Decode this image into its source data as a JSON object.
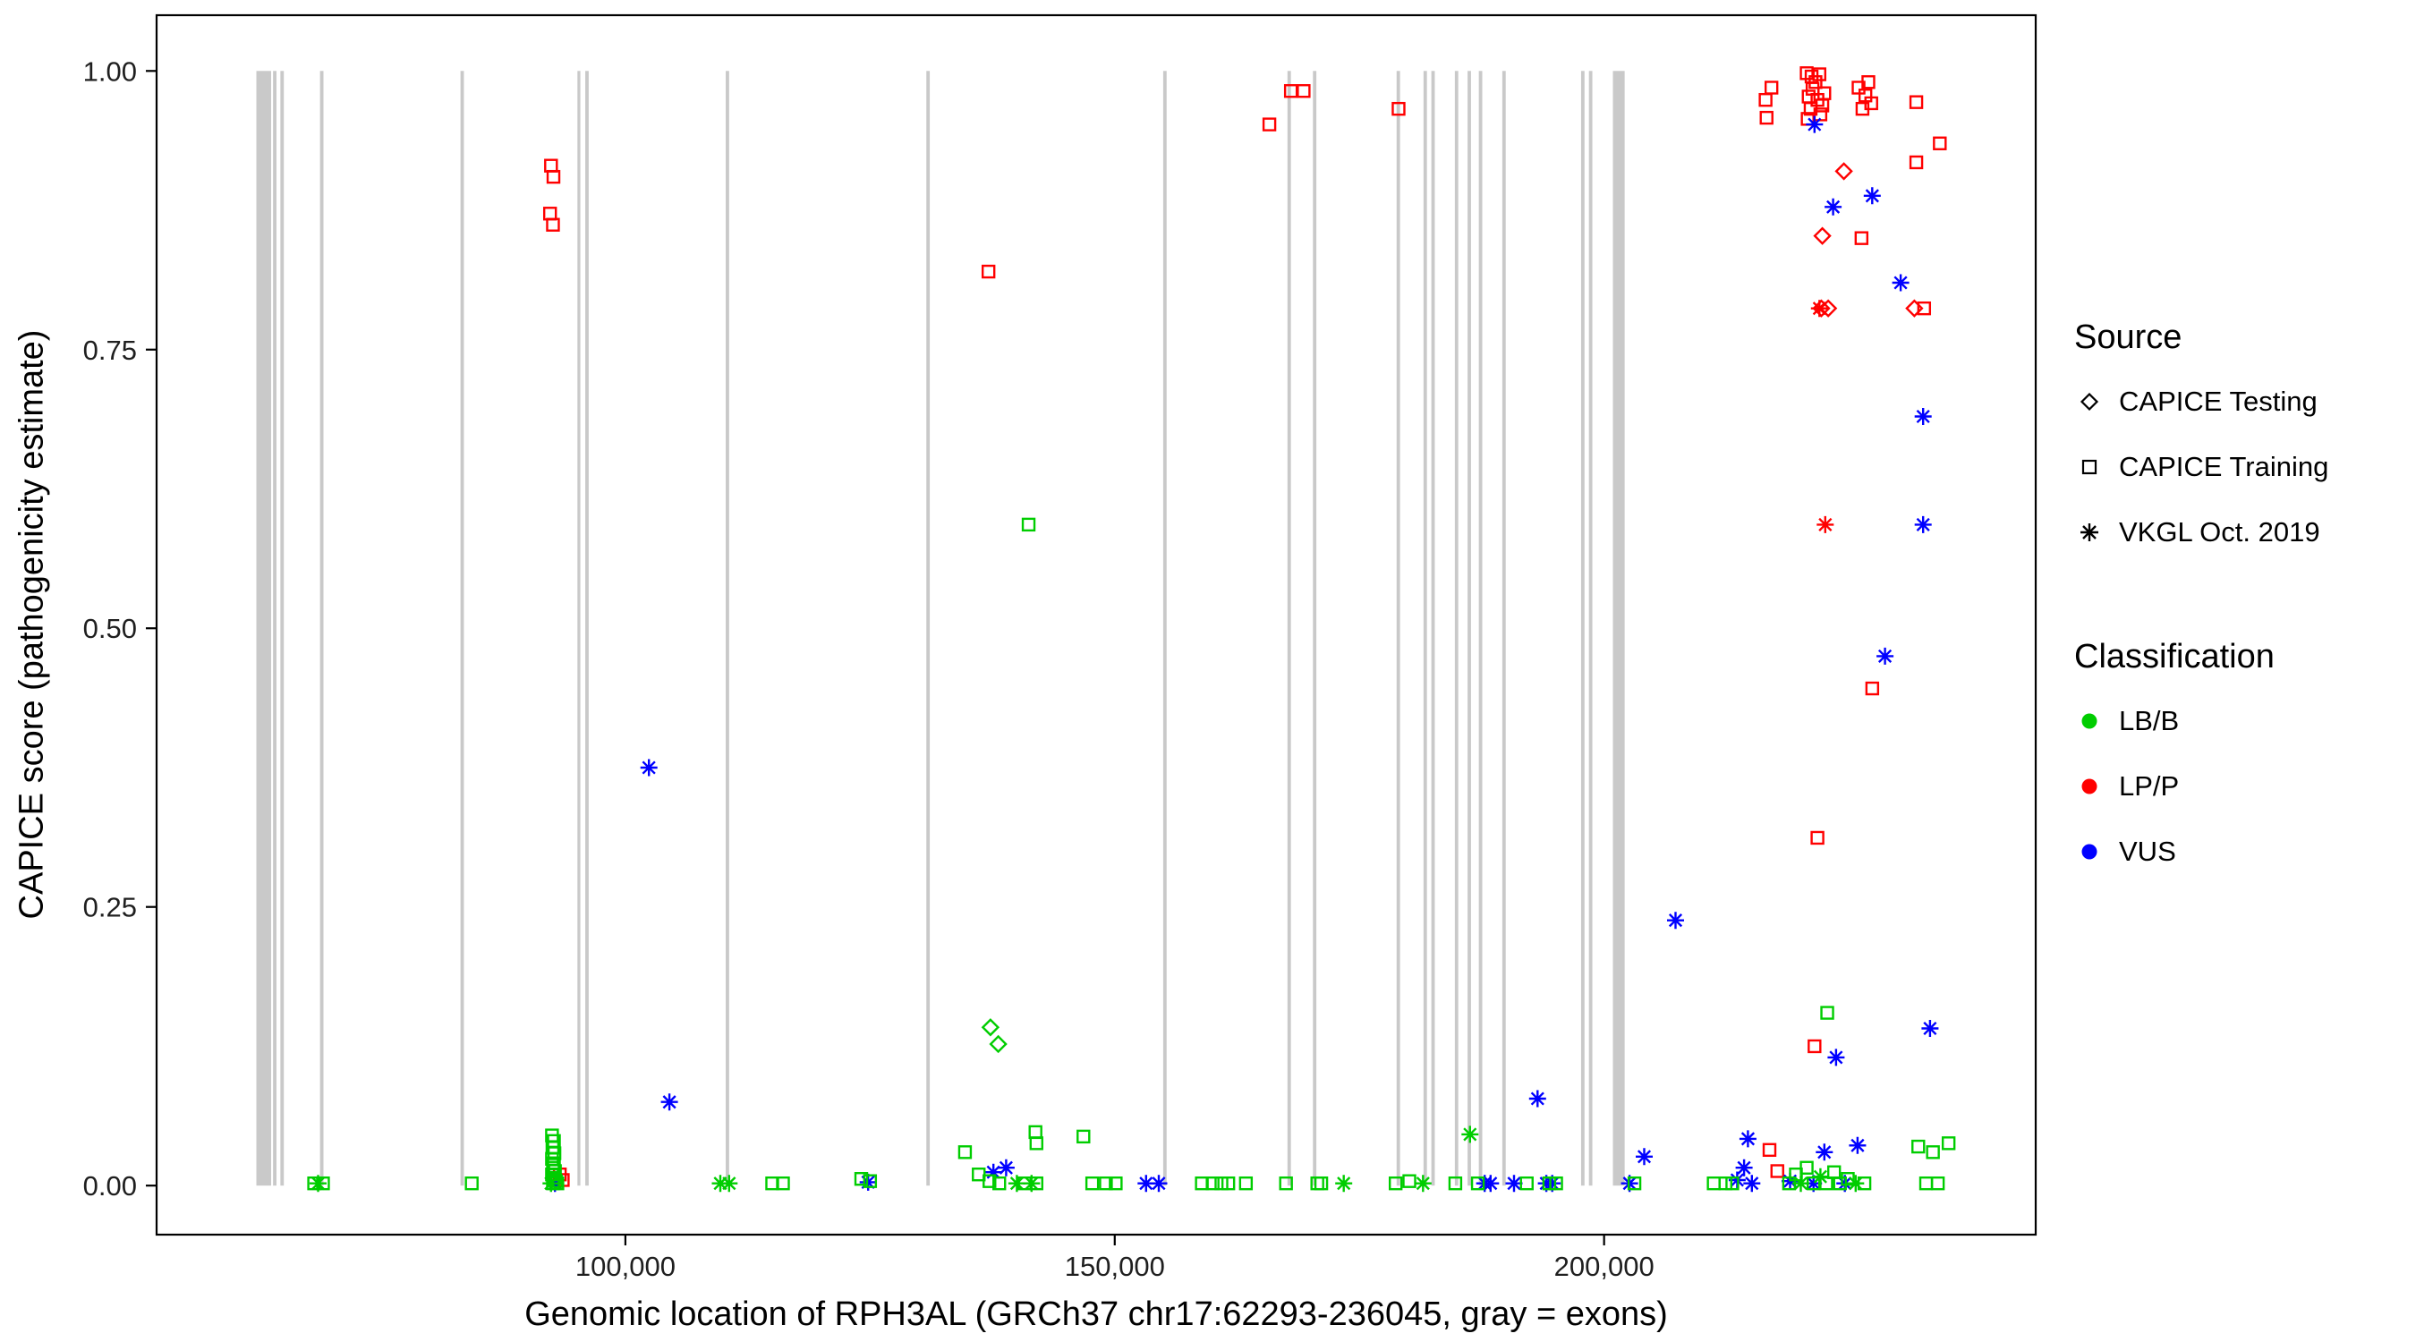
{
  "legend": {
    "source": {
      "title": "Source",
      "items": [
        {
          "label": "CAPICE Testing",
          "marker": "diamond"
        },
        {
          "label": "CAPICE Training",
          "marker": "square"
        },
        {
          "label": "VKGL Oct. 2019",
          "marker": "asterisk"
        }
      ]
    },
    "classification": {
      "title": "Classification",
      "items": [
        {
          "label": "LB/B",
          "color": "#00CD00"
        },
        {
          "label": "LP/P",
          "color": "#FF0000"
        },
        {
          "label": "VUS",
          "color": "#0000FF"
        }
      ]
    }
  },
  "chart_data": {
    "type": "scatter",
    "title": "",
    "xlabel": "Genomic location of RPH3AL (GRCh37 chr17:62293-236045, gray = exons)",
    "ylabel": "CAPICE score (pathogenicity estimate)",
    "xlim": [
      52100,
      244100
    ],
    "ylim": [
      -0.044,
      1.05
    ],
    "grid": false,
    "legend_position": "right",
    "xticks": [
      {
        "value": 100000,
        "label": "100,000"
      },
      {
        "value": 150000,
        "label": "150,000"
      },
      {
        "value": 200000,
        "label": "200,000"
      }
    ],
    "yticks": [
      {
        "value": 0.0,
        "label": "0.00"
      },
      {
        "value": 0.25,
        "label": "0.25"
      },
      {
        "value": 0.5,
        "label": "0.50"
      },
      {
        "value": 0.75,
        "label": "0.75"
      },
      {
        "value": 1.0,
        "label": "1.00"
      }
    ],
    "exon_color": "#BFBFBF",
    "class_colors": {
      "B": "#00CD00",
      "P": "#FF0000",
      "U": "#0000FF"
    },
    "source_markers": {
      "T": "diamond",
      "R": "square",
      "V": "asterisk"
    },
    "source_codes": {
      "T": "CAPICE Testing",
      "R": "CAPICE Training",
      "V": "VKGL Oct. 2019"
    },
    "class_codes": {
      "B": "LB/B",
      "P": "LP/P",
      "U": "VUS"
    },
    "point_format": [
      "genomic_position",
      "capice_score",
      "source_code",
      "classification_code"
    ],
    "exons": [
      [
        62293,
        63800
      ],
      [
        64000,
        64350
      ],
      [
        64750,
        65100
      ],
      [
        68800,
        69150
      ],
      [
        83150,
        83500
      ],
      [
        95100,
        95400
      ],
      [
        95900,
        96250
      ],
      [
        110250,
        110600
      ],
      [
        130750,
        131100
      ],
      [
        154950,
        155300
      ],
      [
        167650,
        168000
      ],
      [
        170250,
        170600
      ],
      [
        178800,
        179150
      ],
      [
        181550,
        181900
      ],
      [
        182350,
        182700
      ],
      [
        184750,
        185100
      ],
      [
        186050,
        186400
      ],
      [
        187200,
        187550
      ],
      [
        189600,
        189950
      ],
      [
        197650,
        198000
      ],
      [
        198450,
        198800
      ],
      [
        200900,
        202100
      ]
    ],
    "points": [
      [
        92400,
        0.915,
        "R",
        "P"
      ],
      [
        92650,
        0.905,
        "R",
        "P"
      ],
      [
        92300,
        0.872,
        "R",
        "P"
      ],
      [
        92600,
        0.862,
        "R",
        "P"
      ],
      [
        93300,
        0.01,
        "R",
        "P"
      ],
      [
        93600,
        0.005,
        "R",
        "P"
      ],
      [
        137100,
        0.82,
        "R",
        "P"
      ],
      [
        165800,
        0.952,
        "R",
        "P"
      ],
      [
        168000,
        0.982,
        "R",
        "P"
      ],
      [
        169300,
        0.982,
        "R",
        "P"
      ],
      [
        179000,
        0.966,
        "R",
        "P"
      ],
      [
        216500,
        0.974,
        "R",
        "P"
      ],
      [
        216600,
        0.958,
        "R",
        "P"
      ],
      [
        217100,
        0.985,
        "R",
        "P"
      ],
      [
        216900,
        0.032,
        "R",
        "P"
      ],
      [
        217700,
        0.013,
        "R",
        "P"
      ],
      [
        220700,
        0.998,
        "R",
        "P"
      ],
      [
        221200,
        0.995,
        "R",
        "P"
      ],
      [
        221600,
        0.99,
        "R",
        "P"
      ],
      [
        222000,
        0.997,
        "R",
        "P"
      ],
      [
        221300,
        0.984,
        "R",
        "P"
      ],
      [
        220900,
        0.977,
        "R",
        "P"
      ],
      [
        221800,
        0.974,
        "R",
        "P"
      ],
      [
        222300,
        0.969,
        "R",
        "P"
      ],
      [
        221100,
        0.966,
        "R",
        "P"
      ],
      [
        222100,
        0.961,
        "R",
        "P"
      ],
      [
        220800,
        0.957,
        "R",
        "P"
      ],
      [
        222500,
        0.98,
        "R",
        "P"
      ],
      [
        226000,
        0.985,
        "R",
        "P"
      ],
      [
        226700,
        0.978,
        "R",
        "P"
      ],
      [
        227300,
        0.971,
        "R",
        "P"
      ],
      [
        226400,
        0.966,
        "R",
        "P"
      ],
      [
        227000,
        0.99,
        "R",
        "P"
      ],
      [
        226300,
        0.85,
        "R",
        "P"
      ],
      [
        231900,
        0.972,
        "R",
        "P"
      ],
      [
        234300,
        0.935,
        "R",
        "P"
      ],
      [
        231900,
        0.918,
        "R",
        "P"
      ],
      [
        232700,
        0.787,
        "R",
        "P"
      ],
      [
        221500,
        0.125,
        "R",
        "P"
      ],
      [
        221800,
        0.312,
        "R",
        "P"
      ],
      [
        227400,
        0.446,
        "R",
        "P"
      ],
      [
        224500,
        0.91,
        "T",
        "P"
      ],
      [
        222300,
        0.852,
        "T",
        "P"
      ],
      [
        222200,
        0.787,
        "T",
        "P"
      ],
      [
        222900,
        0.787,
        "T",
        "P"
      ],
      [
        231700,
        0.787,
        "T",
        "P"
      ],
      [
        222000,
        0.787,
        "V",
        "P"
      ],
      [
        222600,
        0.593,
        "V",
        "P"
      ],
      [
        102400,
        0.375,
        "V",
        "U"
      ],
      [
        104500,
        0.075,
        "V",
        "U"
      ],
      [
        137600,
        0.012,
        "V",
        "U"
      ],
      [
        138900,
        0.016,
        "V",
        "U"
      ],
      [
        153200,
        0.002,
        "V",
        "U"
      ],
      [
        154500,
        0.002,
        "V",
        "U"
      ],
      [
        187800,
        0.002,
        "V",
        "U"
      ],
      [
        188400,
        0.002,
        "V",
        "U"
      ],
      [
        190800,
        0.002,
        "V",
        "U"
      ],
      [
        193200,
        0.078,
        "V",
        "U"
      ],
      [
        194100,
        0.002,
        "V",
        "U"
      ],
      [
        194700,
        0.002,
        "V",
        "U"
      ],
      [
        202600,
        0.002,
        "V",
        "U"
      ],
      [
        204100,
        0.026,
        "V",
        "U"
      ],
      [
        207300,
        0.238,
        "V",
        "U"
      ],
      [
        213600,
        0.005,
        "V",
        "U"
      ],
      [
        214300,
        0.016,
        "V",
        "U"
      ],
      [
        214700,
        0.042,
        "V",
        "U"
      ],
      [
        215100,
        0.002,
        "V",
        "U"
      ],
      [
        219000,
        0.004,
        "V",
        "U"
      ],
      [
        221400,
        0.002,
        "V",
        "U"
      ],
      [
        222500,
        0.03,
        "V",
        "U"
      ],
      [
        224600,
        0.002,
        "V",
        "U"
      ],
      [
        225900,
        0.036,
        "V",
        "U"
      ],
      [
        223700,
        0.115,
        "V",
        "U"
      ],
      [
        233300,
        0.141,
        "V",
        "U"
      ],
      [
        228700,
        0.475,
        "V",
        "U"
      ],
      [
        232600,
        0.593,
        "V",
        "U"
      ],
      [
        232600,
        0.69,
        "V",
        "U"
      ],
      [
        230300,
        0.81,
        "V",
        "U"
      ],
      [
        221500,
        0.952,
        "V",
        "U"
      ],
      [
        223400,
        0.878,
        "V",
        "U"
      ],
      [
        227400,
        0.888,
        "V",
        "U"
      ],
      [
        92800,
        0.002,
        "V",
        "U"
      ],
      [
        124800,
        0.003,
        "V",
        "U"
      ],
      [
        68200,
        0.002,
        "R",
        "B"
      ],
      [
        69100,
        0.002,
        "R",
        "B"
      ],
      [
        84300,
        0.002,
        "R",
        "B"
      ],
      [
        92500,
        0.045,
        "R",
        "B"
      ],
      [
        92700,
        0.04,
        "R",
        "B"
      ],
      [
        92550,
        0.034,
        "R",
        "B"
      ],
      [
        92750,
        0.029,
        "R",
        "B"
      ],
      [
        92500,
        0.024,
        "R",
        "B"
      ],
      [
        92700,
        0.02,
        "R",
        "B"
      ],
      [
        92600,
        0.016,
        "R",
        "B"
      ],
      [
        92800,
        0.013,
        "R",
        "B"
      ],
      [
        92500,
        0.01,
        "R",
        "B"
      ],
      [
        92700,
        0.007,
        "R",
        "B"
      ],
      [
        92900,
        0.004,
        "R",
        "B"
      ],
      [
        92600,
        0.002,
        "R",
        "B"
      ],
      [
        93050,
        0.002,
        "R",
        "B"
      ],
      [
        115000,
        0.002,
        "R",
        "B"
      ],
      [
        116100,
        0.002,
        "R",
        "B"
      ],
      [
        124100,
        0.006,
        "R",
        "B"
      ],
      [
        125000,
        0.004,
        "R",
        "B"
      ],
      [
        134700,
        0.03,
        "R",
        "B"
      ],
      [
        136100,
        0.01,
        "R",
        "B"
      ],
      [
        137200,
        0.004,
        "R",
        "B"
      ],
      [
        138200,
        0.002,
        "R",
        "B"
      ],
      [
        140800,
        0.002,
        "R",
        "B"
      ],
      [
        142000,
        0.002,
        "R",
        "B"
      ],
      [
        141200,
        0.593,
        "R",
        "B"
      ],
      [
        141900,
        0.048,
        "R",
        "B"
      ],
      [
        142000,
        0.038,
        "R",
        "B"
      ],
      [
        146800,
        0.044,
        "R",
        "B"
      ],
      [
        147700,
        0.002,
        "R",
        "B"
      ],
      [
        149100,
        0.002,
        "R",
        "B"
      ],
      [
        150100,
        0.002,
        "R",
        "B"
      ],
      [
        158900,
        0.002,
        "R",
        "B"
      ],
      [
        160000,
        0.002,
        "R",
        "B"
      ],
      [
        160900,
        0.002,
        "R",
        "B"
      ],
      [
        161600,
        0.002,
        "R",
        "B"
      ],
      [
        163400,
        0.002,
        "R",
        "B"
      ],
      [
        167500,
        0.002,
        "R",
        "B"
      ],
      [
        170700,
        0.002,
        "R",
        "B"
      ],
      [
        171100,
        0.002,
        "R",
        "B"
      ],
      [
        178700,
        0.002,
        "R",
        "B"
      ],
      [
        180100,
        0.004,
        "R",
        "B"
      ],
      [
        184800,
        0.002,
        "R",
        "B"
      ],
      [
        187100,
        0.002,
        "R",
        "B"
      ],
      [
        192100,
        0.002,
        "R",
        "B"
      ],
      [
        194400,
        0.002,
        "R",
        "B"
      ],
      [
        195100,
        0.002,
        "R",
        "B"
      ],
      [
        203100,
        0.002,
        "R",
        "B"
      ],
      [
        211200,
        0.002,
        "R",
        "B"
      ],
      [
        212400,
        0.002,
        "R",
        "B"
      ],
      [
        213100,
        0.002,
        "R",
        "B"
      ],
      [
        218900,
        0.002,
        "R",
        "B"
      ],
      [
        219600,
        0.01,
        "R",
        "B"
      ],
      [
        220700,
        0.016,
        "R",
        "B"
      ],
      [
        221400,
        0.002,
        "R",
        "B"
      ],
      [
        222700,
        0.002,
        "R",
        "B"
      ],
      [
        223500,
        0.012,
        "R",
        "B"
      ],
      [
        224100,
        0.002,
        "R",
        "B"
      ],
      [
        224900,
        0.006,
        "R",
        "B"
      ],
      [
        226600,
        0.002,
        "R",
        "B"
      ],
      [
        222800,
        0.155,
        "R",
        "B"
      ],
      [
        232100,
        0.035,
        "R",
        "B"
      ],
      [
        233600,
        0.03,
        "R",
        "B"
      ],
      [
        232900,
        0.002,
        "R",
        "B"
      ],
      [
        234100,
        0.002,
        "R",
        "B"
      ],
      [
        235200,
        0.038,
        "R",
        "B"
      ],
      [
        68600,
        0.002,
        "V",
        "B"
      ],
      [
        92400,
        0.002,
        "V",
        "B"
      ],
      [
        109700,
        0.002,
        "V",
        "B"
      ],
      [
        110600,
        0.002,
        "V",
        "B"
      ],
      [
        140000,
        0.002,
        "V",
        "B"
      ],
      [
        141500,
        0.002,
        "V",
        "B"
      ],
      [
        173400,
        0.002,
        "V",
        "B"
      ],
      [
        181500,
        0.002,
        "V",
        "B"
      ],
      [
        186300,
        0.046,
        "V",
        "B"
      ],
      [
        220100,
        0.002,
        "V",
        "B"
      ],
      [
        222100,
        0.008,
        "V",
        "B"
      ],
      [
        225700,
        0.002,
        "V",
        "B"
      ],
      [
        137300,
        0.142,
        "T",
        "B"
      ],
      [
        138100,
        0.127,
        "T",
        "B"
      ]
    ]
  }
}
